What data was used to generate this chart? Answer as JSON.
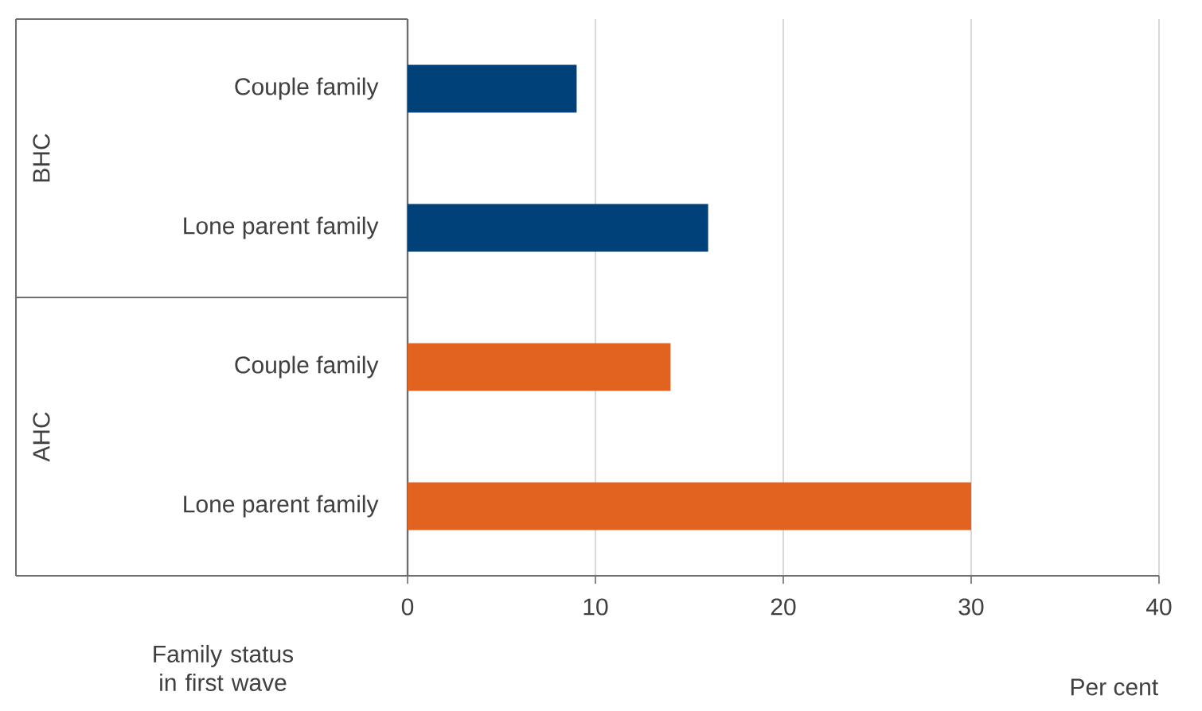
{
  "chart_data": {
    "type": "bar",
    "orientation": "horizontal",
    "categories": [
      "Couple family",
      "Lone parent family",
      "Couple family",
      "Lone parent family"
    ],
    "values": [
      9,
      16,
      14,
      30
    ],
    "colors": [
      "#00417a",
      "#00417a",
      "#e2621f",
      "#e2621f"
    ],
    "annotations": [
      "BHC",
      "AHC"
    ],
    "xlim": [
      0,
      40
    ],
    "xticks": [
      0,
      10,
      20,
      30,
      40
    ],
    "xlabel": "Per cent",
    "ylabel": "Family status in first wave",
    "grid": "x"
  }
}
